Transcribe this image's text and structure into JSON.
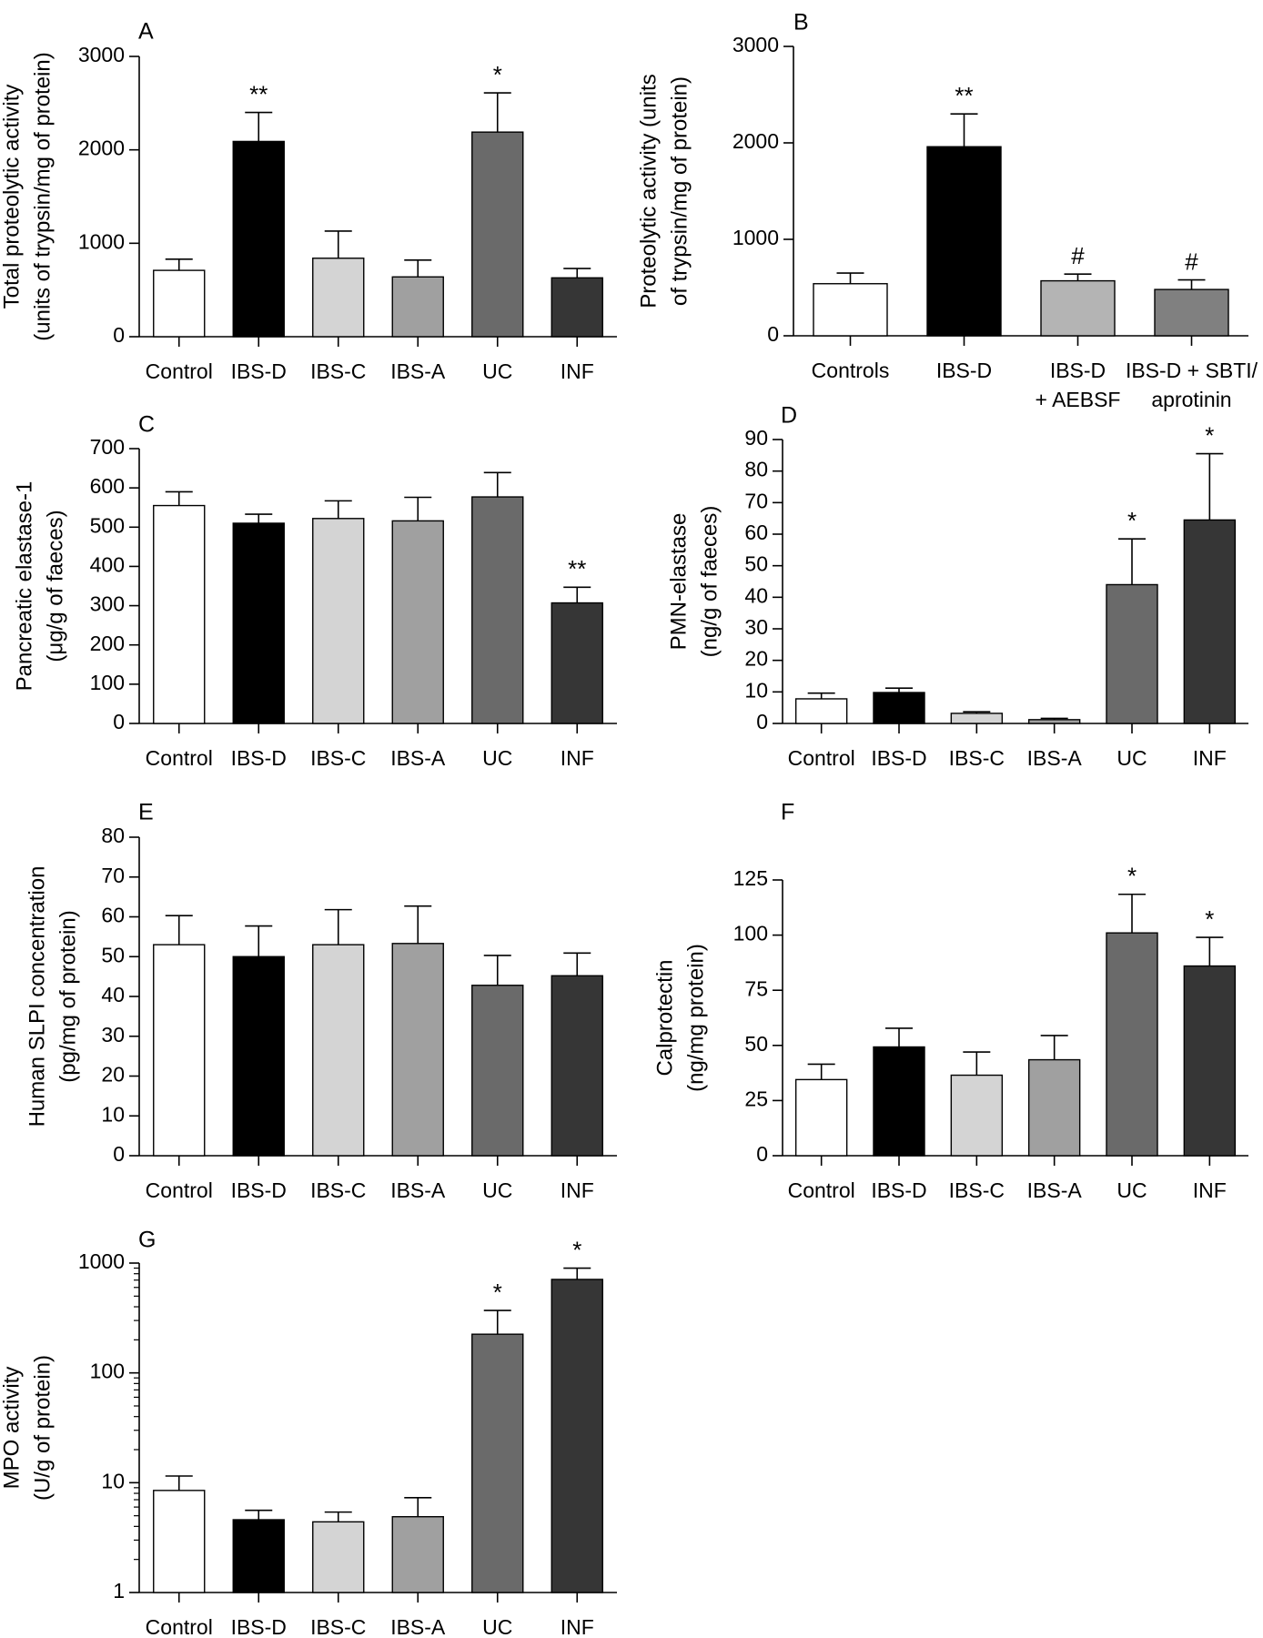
{
  "figure": {
    "palette": {
      "Control": "#ffffff",
      "Controls": "#ffffff",
      "IBS-D": "#000000",
      "IBS-C": "#d4d4d4",
      "IBS-A": "#a0a0a0",
      "UC": "#6a6a6a",
      "INF": "#363636",
      "IBS-D\n+ AEBSF": "#b4b4b4",
      "IBS-D + SBTI/\naprotinin": "#808080"
    }
  },
  "chart_data": [
    {
      "panel": "A",
      "type": "bar",
      "ylabel": [
        "Total proteolytic activity",
        "(units of trypsin/mg of protein)"
      ],
      "scale": "linear",
      "ylim": [
        0,
        3000
      ],
      "yticks": [
        0,
        1000,
        2000,
        3000
      ],
      "categories": [
        "Control",
        "IBS-D",
        "IBS-C",
        "IBS-A",
        "UC",
        "INF"
      ],
      "values": [
        710,
        2090,
        840,
        640,
        2190,
        630
      ],
      "errors": [
        120,
        310,
        290,
        180,
        420,
        100
      ],
      "annotations": [
        "",
        "**",
        "",
        "",
        "*",
        ""
      ]
    },
    {
      "panel": "B",
      "type": "bar",
      "ylabel": [
        "Proteolytic activity (units",
        "of trypsin/mg of protein)"
      ],
      "scale": "linear",
      "ylim": [
        0,
        3000
      ],
      "yticks": [
        0,
        1000,
        2000,
        3000
      ],
      "categories": [
        "Controls",
        "IBS-D",
        "IBS-D\n+ AEBSF",
        "IBS-D + SBTI/\naprotinin"
      ],
      "values": [
        540,
        1960,
        570,
        480
      ],
      "errors": [
        110,
        340,
        70,
        100
      ],
      "annotations": [
        "",
        "**",
        "#",
        "#"
      ]
    },
    {
      "panel": "C",
      "type": "bar",
      "ylabel": [
        "Pancreatic elastase-1",
        "(μg/g of faeces)"
      ],
      "scale": "linear",
      "ylim": [
        0,
        700
      ],
      "yticks": [
        0,
        100,
        200,
        300,
        400,
        500,
        600,
        700
      ],
      "categories": [
        "Control",
        "IBS-D",
        "IBS-C",
        "IBS-A",
        "UC",
        "INF"
      ],
      "values": [
        555,
        510,
        522,
        516,
        577,
        307
      ],
      "errors": [
        35,
        23,
        45,
        60,
        62,
        40
      ],
      "annotations": [
        "",
        "",
        "",
        "",
        "",
        "**"
      ]
    },
    {
      "panel": "D",
      "type": "bar",
      "ylabel": [
        "PMN-elastase",
        "(ng/g of faeces)"
      ],
      "scale": "linear",
      "ylim": [
        0,
        90
      ],
      "yticks": [
        0,
        10,
        20,
        30,
        40,
        50,
        60,
        70,
        80,
        90
      ],
      "categories": [
        "Control",
        "IBS-D",
        "IBS-C",
        "IBS-A",
        "UC",
        "INF"
      ],
      "values": [
        7.8,
        9.8,
        3.2,
        1.2,
        44,
        64.5
      ],
      "errors": [
        1.8,
        1.4,
        0.5,
        0.4,
        14.5,
        21
      ],
      "annotations": [
        "",
        "",
        "",
        "",
        "*",
        "*"
      ]
    },
    {
      "panel": "E",
      "type": "bar",
      "ylabel": [
        "Human SLPI concentration",
        "(pg/mg of protein)"
      ],
      "scale": "linear",
      "ylim": [
        0,
        80
      ],
      "yticks": [
        0,
        10,
        20,
        30,
        40,
        50,
        60,
        70,
        80
      ],
      "categories": [
        "Control",
        "IBS-D",
        "IBS-C",
        "IBS-A",
        "UC",
        "INF"
      ],
      "values": [
        53,
        50,
        53,
        53.3,
        42.8,
        45.2
      ],
      "errors": [
        7.3,
        7.7,
        8.8,
        9.4,
        7.5,
        5.7
      ],
      "annotations": [
        "",
        "",
        "",
        "",
        "",
        ""
      ]
    },
    {
      "panel": "F",
      "type": "bar",
      "ylabel": [
        "Calprotectin",
        "(ng/mg protein)"
      ],
      "scale": "linear",
      "ylim": [
        0,
        125
      ],
      "yticks": [
        0,
        25,
        50,
        75,
        100,
        125
      ],
      "categories": [
        "Control",
        "IBS-D",
        "IBS-C",
        "IBS-A",
        "UC",
        "INF"
      ],
      "values": [
        34.5,
        49.3,
        36.5,
        43.5,
        101,
        86
      ],
      "errors": [
        7,
        8.5,
        10.5,
        11,
        17.5,
        13
      ],
      "annotations": [
        "",
        "",
        "",
        "",
        "*",
        "*"
      ]
    },
    {
      "panel": "G",
      "type": "bar",
      "ylabel": [
        "MPO activity",
        "(U/g of protein)"
      ],
      "scale": "log",
      "ylim": [
        1,
        1000
      ],
      "yticks": [
        1,
        10,
        100,
        1000
      ],
      "categories": [
        "Control",
        "IBS-D",
        "IBS-C",
        "IBS-A",
        "UC",
        "INF"
      ],
      "values": [
        8.5,
        4.6,
        4.4,
        4.9,
        225,
        710
      ],
      "errors": [
        3,
        1,
        1,
        2.4,
        145,
        190
      ],
      "annotations": [
        "",
        "",
        "",
        "",
        "*",
        "*"
      ]
    }
  ]
}
